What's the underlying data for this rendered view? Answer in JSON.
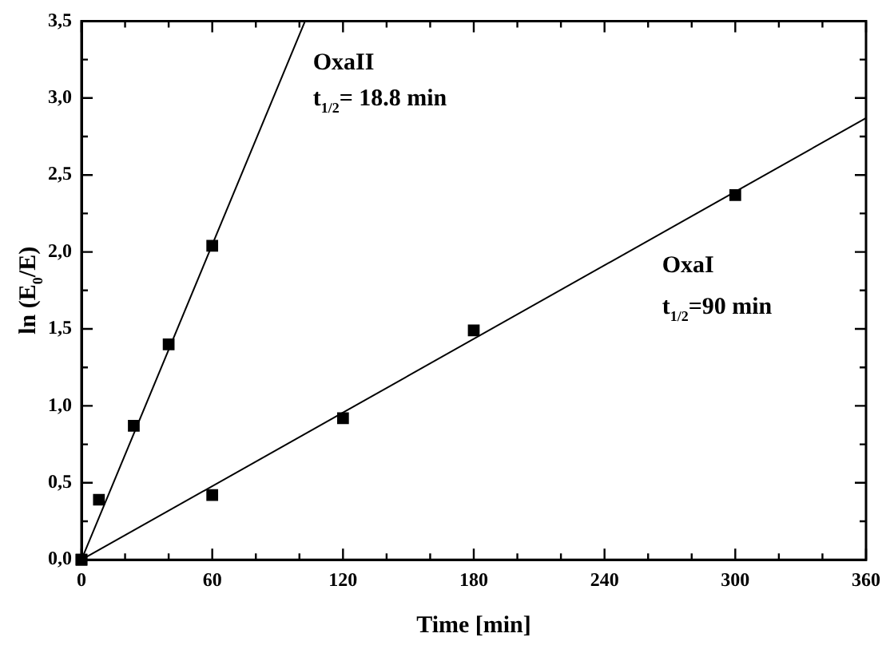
{
  "chart_data": {
    "type": "scatter",
    "xlabel": "Time [min]",
    "ylabel": "ln (E$_{0}$/E)",
    "xlim": [
      0,
      360
    ],
    "ylim": [
      0,
      3.5
    ],
    "xticks": [
      0,
      {
        "value": 20,
        "label": null
      },
      {
        "value": 40,
        "label": null
      },
      60,
      {
        "value": 80,
        "label": null
      },
      {
        "value": 100,
        "label": null
      },
      120,
      {
        "value": 140,
        "label": null
      },
      {
        "value": 160,
        "label": null
      },
      180,
      {
        "value": 200,
        "label": null
      },
      {
        "value": 220,
        "label": null
      },
      240,
      {
        "value": 260,
        "label": null
      },
      {
        "value": 280,
        "label": null
      },
      300,
      {
        "value": 320,
        "label": null
      },
      {
        "value": 340,
        "label": null
      },
      360
    ],
    "yticks": [
      {
        "value": 0,
        "label": "0,0"
      },
      {
        "value": 0.25,
        "label": null
      },
      {
        "value": 0.5,
        "label": "0,5"
      },
      {
        "value": 0.75,
        "label": null
      },
      {
        "value": 1,
        "label": "1,0"
      },
      {
        "value": 1.25,
        "label": null
      },
      {
        "value": 1.5,
        "label": "1,5"
      },
      {
        "value": 1.75,
        "label": null
      },
      {
        "value": 2,
        "label": "2,0"
      },
      {
        "value": 2.25,
        "label": null
      },
      {
        "value": 2.5,
        "label": "2,5"
      },
      {
        "value": 2.75,
        "label": null
      },
      {
        "value": 3,
        "label": "3,0"
      },
      {
        "value": 3.25,
        "label": null
      },
      {
        "value": 3.5,
        "label": "3,5"
      }
    ],
    "grid": false,
    "legend": false,
    "series": [
      {
        "type": "scatter",
        "marker": "square",
        "color": "#000000",
        "x": [
          0,
          8,
          24,
          40,
          60
        ],
        "values": [
          0,
          0.39,
          0.87,
          1.4,
          2.04
        ]
      },
      {
        "type": "scatter",
        "marker": "square",
        "color": "#000000",
        "x": [
          0,
          60,
          120,
          180,
          300
        ],
        "values": [
          0,
          0.42,
          0.92,
          1.49,
          2.37
        ]
      },
      {
        "type": "line",
        "marker": "none",
        "color": "#000000",
        "x": [
          0,
          102.6
        ],
        "values": [
          0,
          3.5
        ]
      },
      {
        "type": "line",
        "marker": "none",
        "color": "#000000",
        "x": [
          0,
          360
        ],
        "values": [
          0,
          2.87
        ]
      }
    ],
    "annotations": [
      "OxaII",
      "t$_{1/2}$= 18.8 min",
      "OxaI",
      "t$_{1/2}$=90 min"
    ]
  }
}
